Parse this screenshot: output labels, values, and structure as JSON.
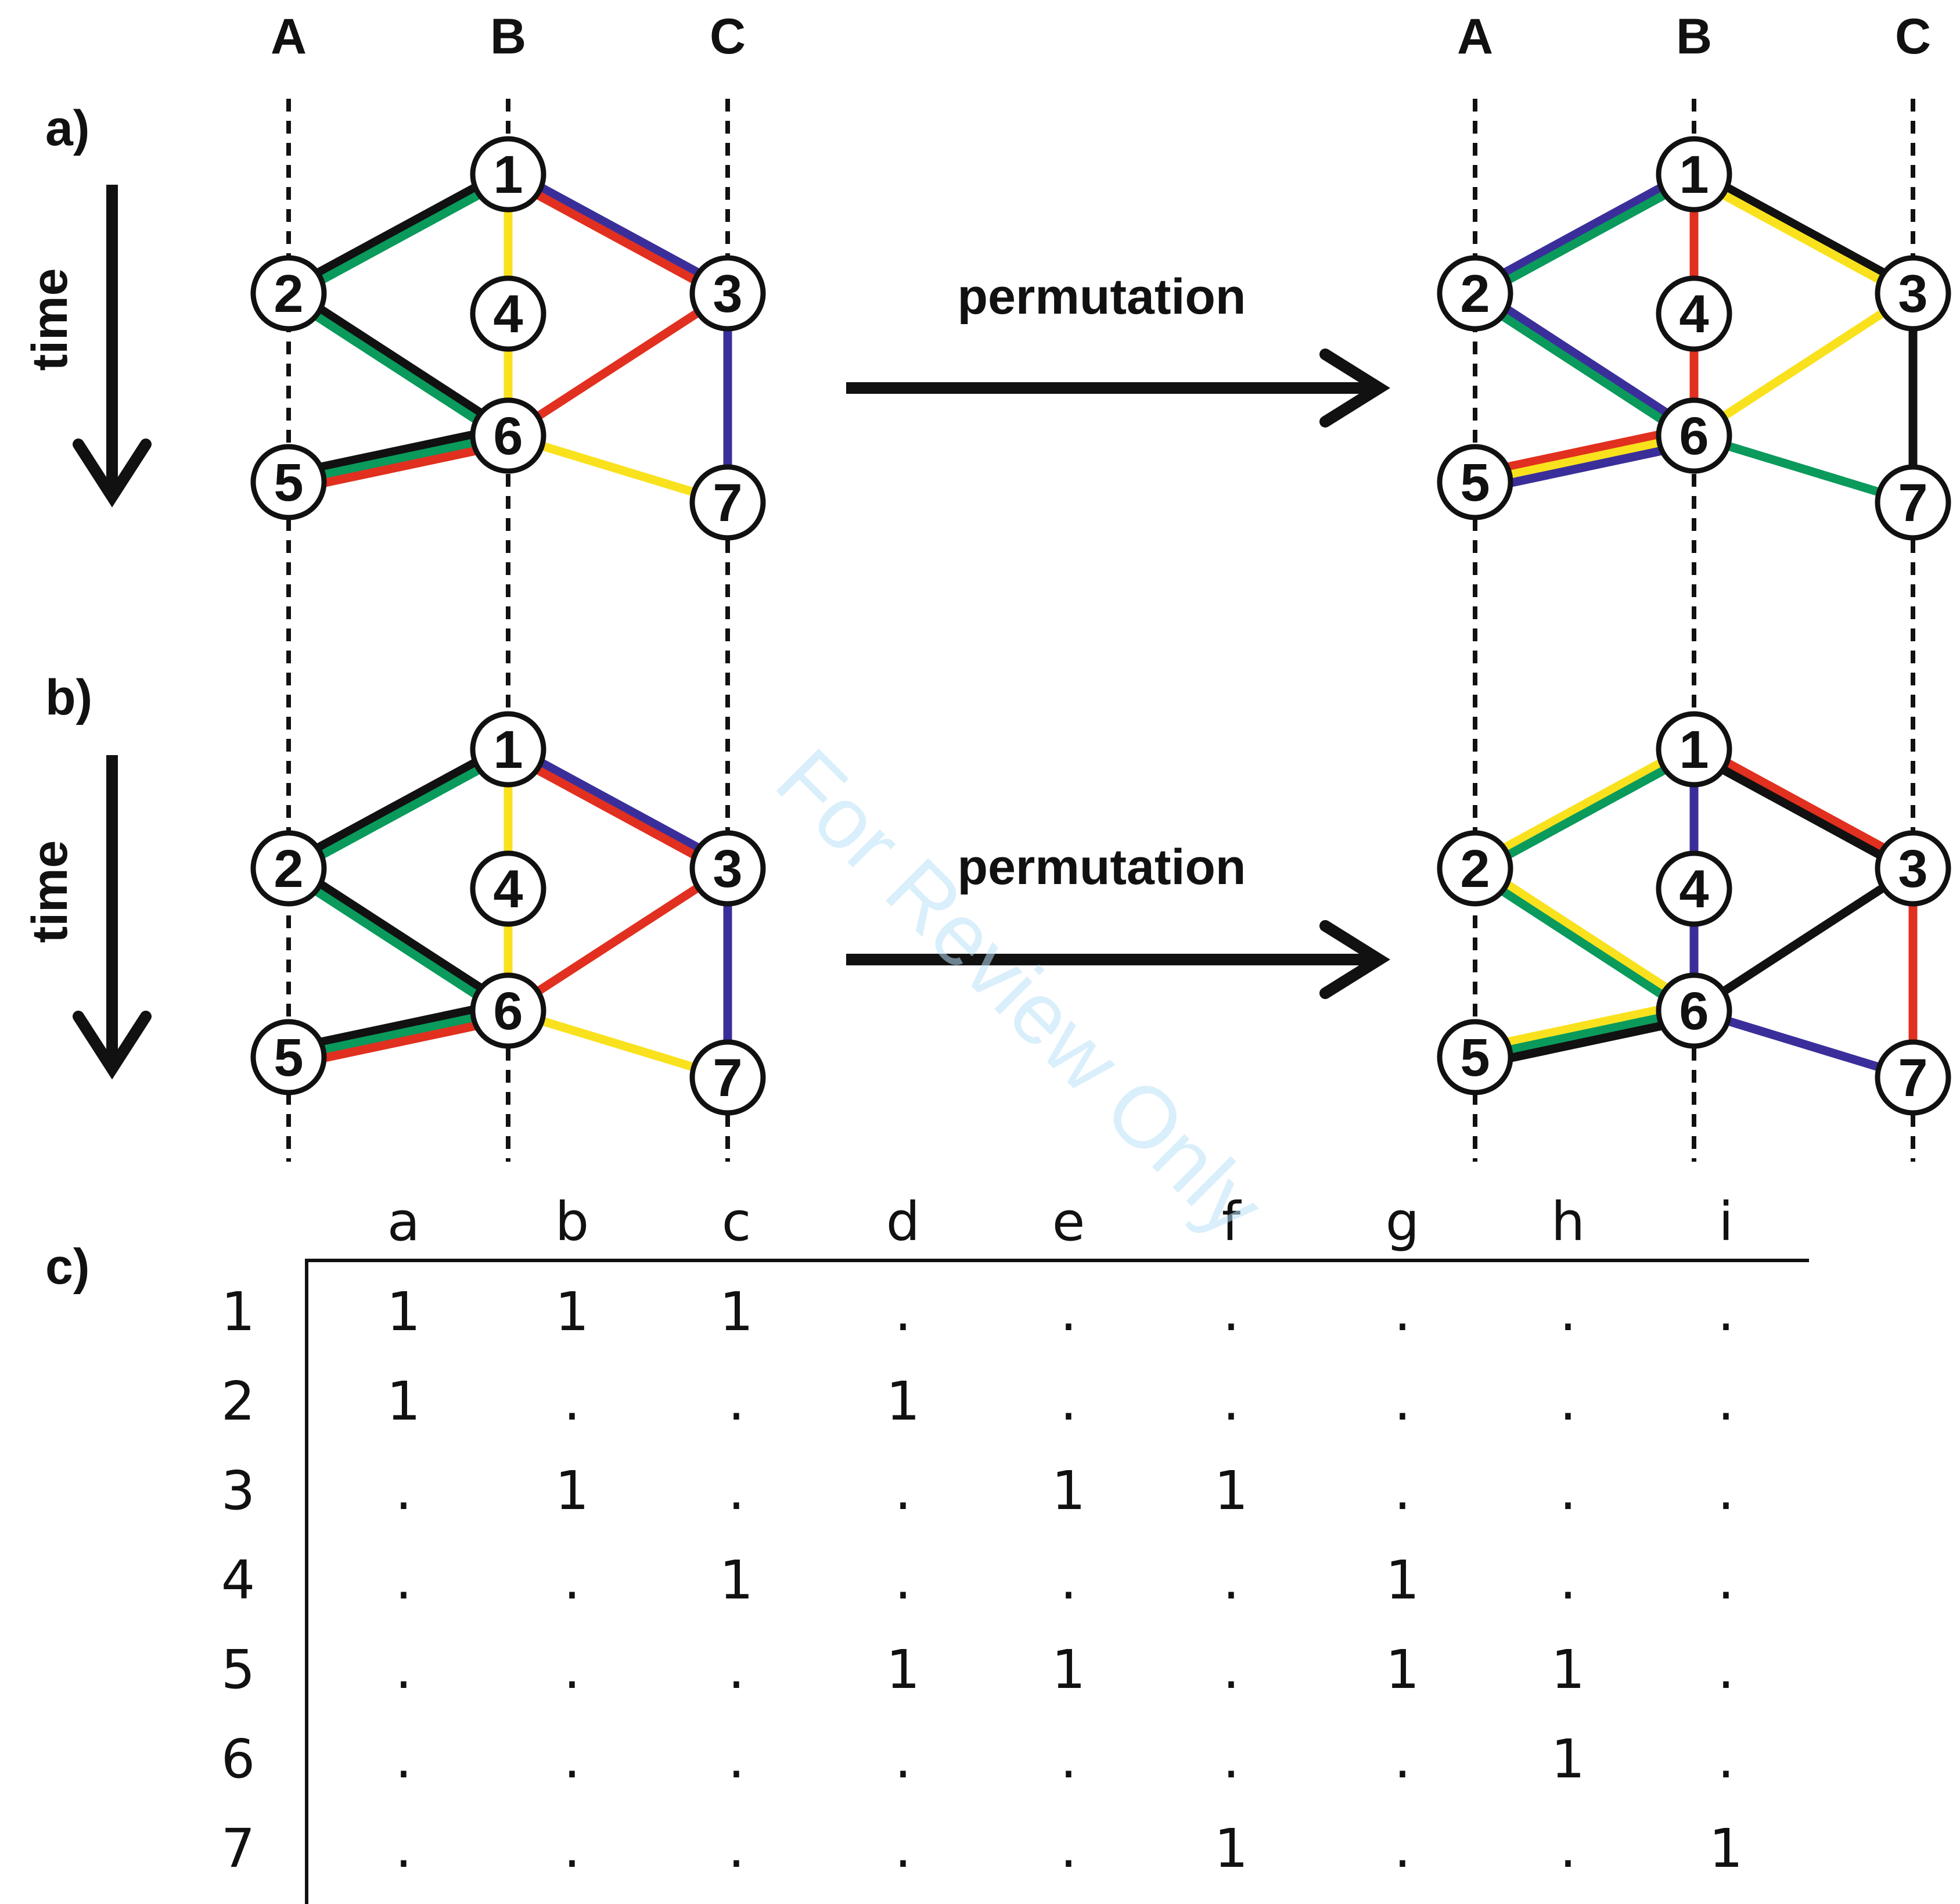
{
  "column_labels": [
    "A",
    "B",
    "C"
  ],
  "panels": [
    {
      "id": "a",
      "label": "a)",
      "time_label": "time",
      "arrow_label": "permutation",
      "left": {
        "nodes": [
          "1",
          "2",
          "3",
          "4",
          "5",
          "6",
          "7"
        ],
        "edges": [
          {
            "from": "2",
            "to": "1",
            "colors": [
              "black",
              "green"
            ]
          },
          {
            "from": "1",
            "to": "3",
            "colors": [
              "blue",
              "red"
            ]
          },
          {
            "from": "1",
            "to": "6",
            "colors": [
              "yellow"
            ]
          },
          {
            "from": "2",
            "to": "6",
            "colors": [
              "black",
              "green"
            ]
          },
          {
            "from": "3",
            "to": "6",
            "colors": [
              "red"
            ]
          },
          {
            "from": "3",
            "to": "7",
            "colors": [
              "blue"
            ]
          },
          {
            "from": "5",
            "to": "6",
            "colors": [
              "black",
              "green",
              "red"
            ]
          },
          {
            "from": "6",
            "to": "7",
            "colors": [
              "yellow"
            ]
          }
        ]
      },
      "right": {
        "nodes": [
          "1",
          "2",
          "3",
          "4",
          "5",
          "6",
          "7"
        ],
        "edges": [
          {
            "from": "2",
            "to": "1",
            "colors": [
              "blue",
              "green"
            ]
          },
          {
            "from": "1",
            "to": "3",
            "colors": [
              "black",
              "yellow"
            ]
          },
          {
            "from": "1",
            "to": "6",
            "colors": [
              "red"
            ]
          },
          {
            "from": "2",
            "to": "6",
            "colors": [
              "blue",
              "green"
            ]
          },
          {
            "from": "3",
            "to": "6",
            "colors": [
              "yellow"
            ]
          },
          {
            "from": "3",
            "to": "7",
            "colors": [
              "black"
            ]
          },
          {
            "from": "5",
            "to": "6",
            "colors": [
              "red",
              "yellow",
              "blue"
            ]
          },
          {
            "from": "6",
            "to": "7",
            "colors": [
              "green"
            ]
          }
        ]
      }
    },
    {
      "id": "b",
      "label": "b)",
      "time_label": "time",
      "arrow_label": "permutation",
      "left": {
        "nodes": [
          "1",
          "2",
          "3",
          "4",
          "5",
          "6",
          "7"
        ],
        "edges": [
          {
            "from": "2",
            "to": "1",
            "colors": [
              "black",
              "green"
            ]
          },
          {
            "from": "1",
            "to": "3",
            "colors": [
              "blue",
              "red"
            ]
          },
          {
            "from": "1",
            "to": "6",
            "colors": [
              "yellow"
            ]
          },
          {
            "from": "2",
            "to": "6",
            "colors": [
              "black",
              "green"
            ]
          },
          {
            "from": "3",
            "to": "6",
            "colors": [
              "red"
            ]
          },
          {
            "from": "3",
            "to": "7",
            "colors": [
              "blue"
            ]
          },
          {
            "from": "5",
            "to": "6",
            "colors": [
              "black",
              "green",
              "red"
            ]
          },
          {
            "from": "6",
            "to": "7",
            "colors": [
              "yellow"
            ]
          }
        ]
      },
      "right": {
        "nodes": [
          "1",
          "2",
          "3",
          "4",
          "5",
          "6",
          "7"
        ],
        "edges": [
          {
            "from": "2",
            "to": "1",
            "colors": [
              "yellow",
              "green"
            ]
          },
          {
            "from": "1",
            "to": "3",
            "colors": [
              "red",
              "black"
            ]
          },
          {
            "from": "1",
            "to": "6",
            "colors": [
              "blue"
            ]
          },
          {
            "from": "2",
            "to": "6",
            "colors": [
              "yellow",
              "green"
            ]
          },
          {
            "from": "3",
            "to": "6",
            "colors": [
              "black"
            ]
          },
          {
            "from": "3",
            "to": "7",
            "colors": [
              "red"
            ]
          },
          {
            "from": "5",
            "to": "6",
            "colors": [
              "yellow",
              "green",
              "black"
            ]
          },
          {
            "from": "6",
            "to": "7",
            "colors": [
              "blue"
            ]
          }
        ]
      }
    }
  ],
  "table": {
    "label": "c)",
    "column_headers": [
      "a",
      "b",
      "c",
      "d",
      "e",
      "f",
      "g",
      "h",
      "i"
    ],
    "row_headers": [
      "1",
      "2",
      "3",
      "4",
      "5",
      "6",
      "7"
    ],
    "rows": [
      [
        "1",
        "1",
        "1",
        ".",
        ".",
        ".",
        ".",
        ".",
        "."
      ],
      [
        "1",
        ".",
        ".",
        "1",
        ".",
        ".",
        ".",
        ".",
        "."
      ],
      [
        ".",
        "1",
        ".",
        ".",
        "1",
        "1",
        ".",
        ".",
        "."
      ],
      [
        ".",
        ".",
        "1",
        ".",
        ".",
        ".",
        "1",
        ".",
        "."
      ],
      [
        ".",
        ".",
        ".",
        "1",
        "1",
        ".",
        "1",
        "1",
        "."
      ],
      [
        ".",
        ".",
        ".",
        ".",
        ".",
        ".",
        ".",
        "1",
        "."
      ],
      [
        ".",
        ".",
        ".",
        ".",
        ".",
        "1",
        ".",
        ".",
        "1"
      ]
    ]
  },
  "watermark": "For Review Only",
  "colors": {
    "black": "#111111",
    "green": "#0a9a5c",
    "red": "#e1301f",
    "blue": "#3a2f9a",
    "yellow": "#f9e21d",
    "watermark": "#b9e1f7"
  }
}
